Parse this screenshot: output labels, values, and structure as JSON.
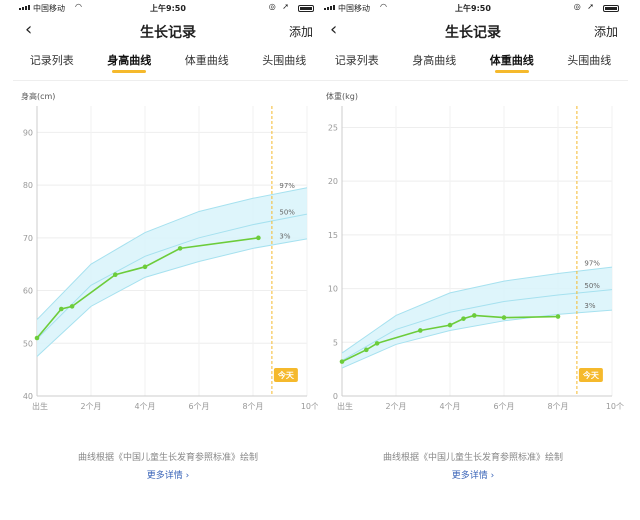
{
  "status_bar": {
    "carrier": "中国移动",
    "time": "上午9:50",
    "icons": "◎ ➚"
  },
  "nav": {
    "title": "生长记录",
    "action": "添加"
  },
  "tabs": [
    "记录列表",
    "身高曲线",
    "体重曲线",
    "头围曲线"
  ],
  "screens": [
    {
      "active_tab": 1,
      "chart_index": 0
    },
    {
      "active_tab": 2,
      "chart_index": 1
    }
  ],
  "footnote": "曲线根据《中国儿童生长发育参照标准》绘制",
  "more_link": "更多详情 ›",
  "colors": {
    "accent": "#f5b92c",
    "series_line": "#6ccc3a",
    "band_fill": "#d8f3fa",
    "band_stroke": "#a6e1ef",
    "link": "#3a64b8"
  },
  "chart_data": [
    {
      "type": "line",
      "title": "",
      "ylabel": "身高(cm)",
      "xlabel": "",
      "x_ticks": [
        {
          "label": "出生",
          "x": 0
        },
        {
          "label": "2个月",
          "x": 2
        },
        {
          "label": "4个月",
          "x": 4
        },
        {
          "label": "6个月",
          "x": 6
        },
        {
          "label": "8个月",
          "x": 8
        },
        {
          "label": "10个",
          "x": 10
        }
      ],
      "xlim": [
        0,
        10
      ],
      "y_ticks": [
        40,
        50,
        60,
        70,
        80,
        90
      ],
      "ylim": [
        40,
        95
      ],
      "grid": true,
      "today_x": 8.7,
      "today_label": "今天",
      "percentiles": [
        {
          "name": "97%",
          "x": [
            0,
            2,
            4,
            6,
            8,
            10
          ],
          "y": [
            54.5,
            65,
            71,
            75,
            77.5,
            79.5
          ]
        },
        {
          "name": "50%",
          "x": [
            0,
            2,
            4,
            6,
            8,
            10
          ],
          "y": [
            50.8,
            61,
            66.5,
            70,
            72.5,
            74.5
          ]
        },
        {
          "name": "3%",
          "x": [
            0,
            2,
            4,
            6,
            8,
            10
          ],
          "y": [
            47.5,
            57,
            62.5,
            65.5,
            68,
            69.8
          ]
        }
      ],
      "series": [
        {
          "x": [
            0,
            0.9,
            1.3,
            2.9,
            4.0,
            5.3,
            8.2
          ],
          "y": [
            51,
            56.5,
            57,
            63,
            64.5,
            68,
            70
          ]
        }
      ]
    },
    {
      "type": "line",
      "title": "",
      "ylabel": "体重(kg)",
      "xlabel": "",
      "x_ticks": [
        {
          "label": "出生",
          "x": 0
        },
        {
          "label": "2个月",
          "x": 2
        },
        {
          "label": "4个月",
          "x": 4
        },
        {
          "label": "6个月",
          "x": 6
        },
        {
          "label": "8个月",
          "x": 8
        },
        {
          "label": "10个",
          "x": 10
        }
      ],
      "xlim": [
        0,
        10
      ],
      "y_ticks": [
        0,
        5,
        10,
        15,
        20,
        25
      ],
      "ylim": [
        0,
        27
      ],
      "grid": true,
      "today_x": 8.7,
      "today_label": "今天",
      "percentiles": [
        {
          "name": "97%",
          "x": [
            0,
            2,
            4,
            6,
            8,
            10
          ],
          "y": [
            4.0,
            7.5,
            9.6,
            10.7,
            11.4,
            12.0
          ]
        },
        {
          "name": "50%",
          "x": [
            0,
            2,
            4,
            6,
            8,
            10
          ],
          "y": [
            3.3,
            6.2,
            7.8,
            8.8,
            9.4,
            9.9
          ]
        },
        {
          "name": "3%",
          "x": [
            0,
            2,
            4,
            6,
            8,
            10
          ],
          "y": [
            2.6,
            4.8,
            6.1,
            7.0,
            7.6,
            8.0
          ]
        }
      ],
      "series": [
        {
          "x": [
            0,
            0.9,
            1.3,
            2.9,
            4.0,
            4.5,
            4.9,
            6.0,
            8.0
          ],
          "y": [
            3.2,
            4.3,
            4.9,
            6.1,
            6.6,
            7.2,
            7.5,
            7.3,
            7.4
          ]
        }
      ]
    }
  ]
}
